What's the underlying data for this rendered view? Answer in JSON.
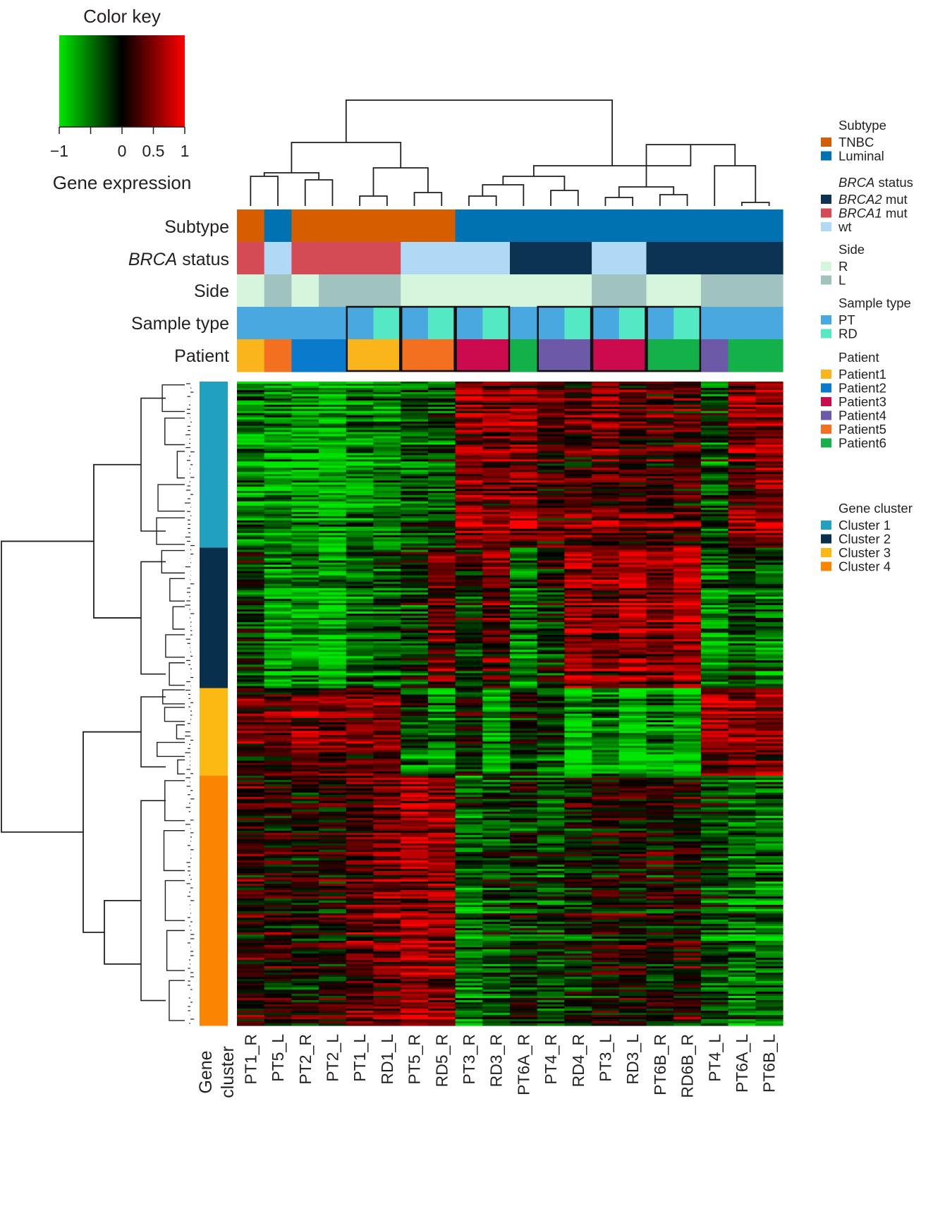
{
  "chart_data": {
    "type": "heatmap",
    "color_key": {
      "title": "Color key",
      "label": "Gene expression",
      "ticks": [
        "−1",
        "0",
        "0.5",
        "1"
      ],
      "tick_values": [
        -1,
        0,
        0.5,
        1
      ],
      "colors": {
        "low": "#00e600",
        "mid": "#000000",
        "high": "#ff0000"
      }
    },
    "samples": [
      "PT1_R",
      "PT5_L",
      "PT2_R",
      "PT2_L",
      "PT1_L",
      "RD1_L",
      "PT5_R",
      "RD5_R",
      "PT3_R",
      "RD3_R",
      "PT6A_R",
      "PT4_R",
      "RD4_R",
      "PT3_L",
      "RD3_L",
      "PT6B_R",
      "RD6B_R",
      "PT4_L",
      "PT6A_L",
      "PT6B_L"
    ],
    "track_labels": {
      "subtype": "Subtype",
      "brca_prefix": "BRCA",
      "brca_suffix": " status",
      "side": "Side",
      "sample_type": "Sample type",
      "patient": "Patient"
    },
    "tracks": {
      "subtype": [
        "TNBC",
        "Luminal",
        "TNBC",
        "TNBC",
        "TNBC",
        "TNBC",
        "TNBC",
        "TNBC",
        "Luminal",
        "Luminal",
        "Luminal",
        "Luminal",
        "Luminal",
        "Luminal",
        "Luminal",
        "Luminal",
        "Luminal",
        "Luminal",
        "Luminal",
        "Luminal"
      ],
      "brca": [
        "BRCA1 mut",
        "wt",
        "BRCA1 mut",
        "BRCA1 mut",
        "BRCA1 mut",
        "BRCA1 mut",
        "wt",
        "wt",
        "wt",
        "wt",
        "BRCA2 mut",
        "BRCA2 mut",
        "BRCA2 mut",
        "wt",
        "wt",
        "BRCA2 mut",
        "BRCA2 mut",
        "BRCA2 mut",
        "BRCA2 mut",
        "BRCA2 mut"
      ],
      "side": [
        "R",
        "L",
        "R",
        "L",
        "L",
        "L",
        "R",
        "R",
        "R",
        "R",
        "R",
        "R",
        "R",
        "L",
        "L",
        "R",
        "R",
        "L",
        "L",
        "L"
      ],
      "sample_type": [
        "PT",
        "PT",
        "PT",
        "PT",
        "PT",
        "RD",
        "PT",
        "RD",
        "PT",
        "RD",
        "PT",
        "PT",
        "RD",
        "PT",
        "RD",
        "PT",
        "RD",
        "PT",
        "PT",
        "PT"
      ],
      "patient": [
        "Patient1",
        "Patient5",
        "Patient2",
        "Patient2",
        "Patient1",
        "Patient1",
        "Patient5",
        "Patient5",
        "Patient3",
        "Patient3",
        "Patient6",
        "Patient4",
        "Patient4",
        "Patient3",
        "Patient3",
        "Patient6",
        "Patient6",
        "Patient4",
        "Patient6",
        "Patient6"
      ]
    },
    "paired_groups": [
      [
        4,
        5
      ],
      [
        6,
        7
      ],
      [
        8,
        9
      ],
      [
        11,
        12
      ],
      [
        13,
        14
      ],
      [
        15,
        16
      ]
    ],
    "gene_cluster_label": [
      "Gene",
      "cluster"
    ],
    "gene_clusters": [
      {
        "name": "Cluster 1",
        "fraction": 0.258
      },
      {
        "name": "Cluster 2",
        "fraction": 0.218
      },
      {
        "name": "Cluster 3",
        "fraction": 0.136
      },
      {
        "name": "Cluster 4",
        "fraction": 0.388
      }
    ],
    "cluster_profiles": [
      [
        -0.6,
        -0.7,
        -0.8,
        -0.8,
        -0.6,
        -0.6,
        -0.4,
        -0.4,
        0.6,
        0.5,
        0.6,
        0.3,
        0.4,
        0.5,
        0.3,
        0.3,
        0.3,
        -0.3,
        0.5,
        0.6
      ],
      [
        -0.2,
        -0.8,
        -0.7,
        -0.8,
        -0.5,
        -0.4,
        -0.2,
        0.4,
        -0.1,
        0.4,
        -0.5,
        -0.1,
        0.7,
        0.5,
        0.7,
        0.5,
        0.8,
        -0.6,
        -0.3,
        -0.5
      ],
      [
        0.3,
        0.3,
        0.5,
        0.5,
        0.5,
        0.5,
        -0.3,
        -0.6,
        0.0,
        -0.8,
        0.0,
        -0.2,
        -0.9,
        -0.6,
        -0.9,
        -0.6,
        -0.9,
        0.6,
        0.6,
        0.6
      ],
      [
        0.2,
        0.1,
        0.0,
        0.1,
        0.4,
        0.5,
        0.7,
        0.6,
        -0.5,
        -0.3,
        -0.1,
        -0.3,
        -0.1,
        0.1,
        0.1,
        0.0,
        0.1,
        -0.3,
        -0.5,
        -0.5
      ]
    ],
    "legends": [
      {
        "title": "Subtype",
        "items": [
          {
            "label": "TNBC",
            "color": "#d55e00"
          },
          {
            "label": "Luminal",
            "color": "#0072b2"
          }
        ]
      },
      {
        "title_prefix": "BRCA",
        "title": " status",
        "items": [
          {
            "prefix": "BRCA2",
            "label": " mut",
            "color": "#0c3352"
          },
          {
            "prefix": "BRCA1",
            "label": " mut",
            "color": "#d44b55"
          },
          {
            "label": "wt",
            "color": "#b0d9f5"
          }
        ]
      },
      {
        "title": "Side",
        "items": [
          {
            "label": "R",
            "color": "#d5f5dc"
          },
          {
            "label": "L",
            "color": "#a0c3c0"
          }
        ]
      },
      {
        "title": "Sample type",
        "items": [
          {
            "label": "PT",
            "color": "#4aa8e0"
          },
          {
            "label": "RD",
            "color": "#55e8c4"
          }
        ]
      },
      {
        "title": "Patient",
        "items": [
          {
            "label": "Patient1",
            "color": "#fbb51c"
          },
          {
            "label": "Patient2",
            "color": "#0a7acc"
          },
          {
            "label": "Patient3",
            "color": "#cc0a4e"
          },
          {
            "label": "Patient4",
            "color": "#6c5aa8"
          },
          {
            "label": "Patient5",
            "color": "#f37021"
          },
          {
            "label": "Patient6",
            "color": "#14b04a"
          }
        ]
      },
      {
        "title": "Gene cluster",
        "items": [
          {
            "label": "Cluster 1",
            "color": "#22a0c0"
          },
          {
            "label": "Cluster 2",
            "color": "#082f4c"
          },
          {
            "label": "Cluster 3",
            "color": "#fdb913"
          },
          {
            "label": "Cluster 4",
            "color": "#fb8500"
          }
        ]
      }
    ]
  }
}
